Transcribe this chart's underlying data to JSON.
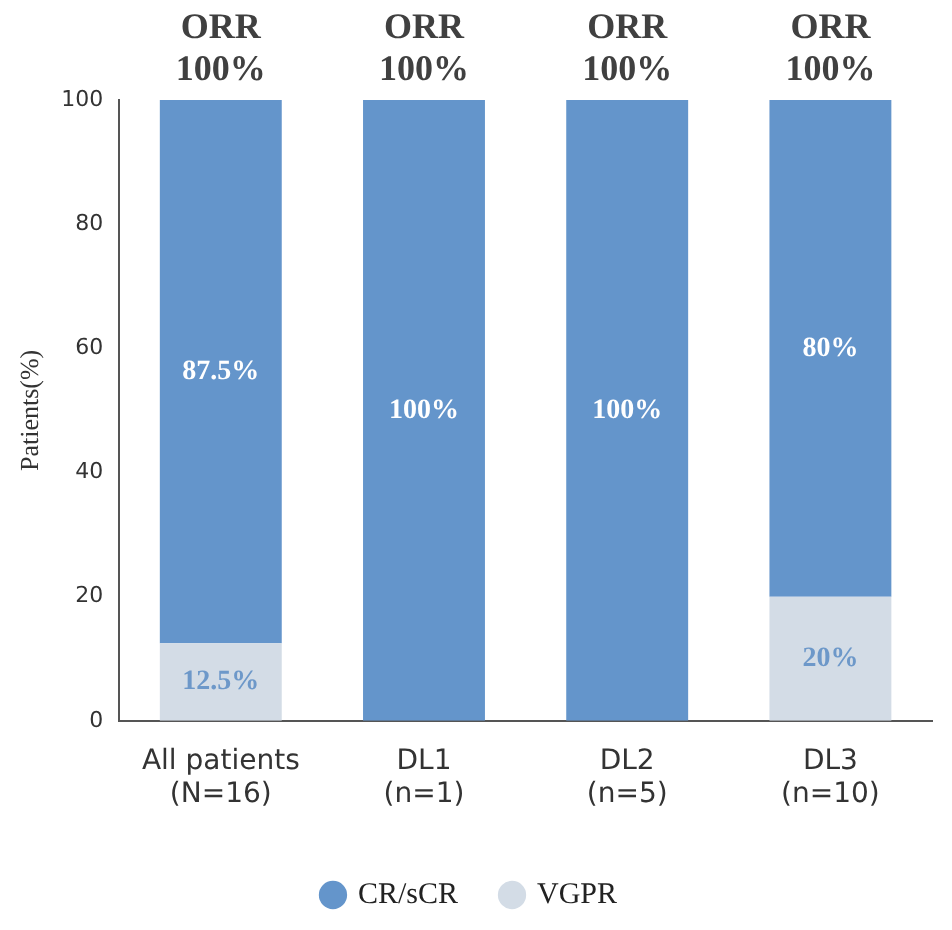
{
  "chart_data": {
    "type": "bar",
    "stacked": true,
    "ylabel": "Patients(%)",
    "categories": [
      "All patients\n(N=16)",
      "DL1\n(n=1)",
      "DL2\n(n=5)",
      "DL3\n(n=10)"
    ],
    "series": [
      {
        "name": "VGPR",
        "color": "#d3dce6",
        "values": [
          12.5,
          0,
          0,
          20
        ],
        "value_labels": [
          "12.5%",
          null,
          null,
          "20%"
        ]
      },
      {
        "name": "CR/sCR",
        "color": "#6495cb",
        "values": [
          87.5,
          100,
          100,
          80
        ],
        "value_labels": [
          "87.5%",
          "100%",
          "100%",
          "80%"
        ]
      }
    ],
    "ylim": [
      0,
      100
    ],
    "yticks": [
      0,
      20,
      40,
      60,
      80,
      100
    ],
    "grid": false,
    "legend": "bottom",
    "annotations": [
      {
        "text": "ORR\n100%",
        "x": "All patients\n(N=16)",
        "y": 100
      },
      {
        "text": "ORR\n100%",
        "x": "DL1\n(n=1)",
        "y": 100
      },
      {
        "text": "ORR\n100%",
        "x": "DL2\n(n=5)",
        "y": 100
      },
      {
        "text": "ORR\n100%",
        "x": "DL3\n(n=10)",
        "y": 100
      }
    ]
  }
}
